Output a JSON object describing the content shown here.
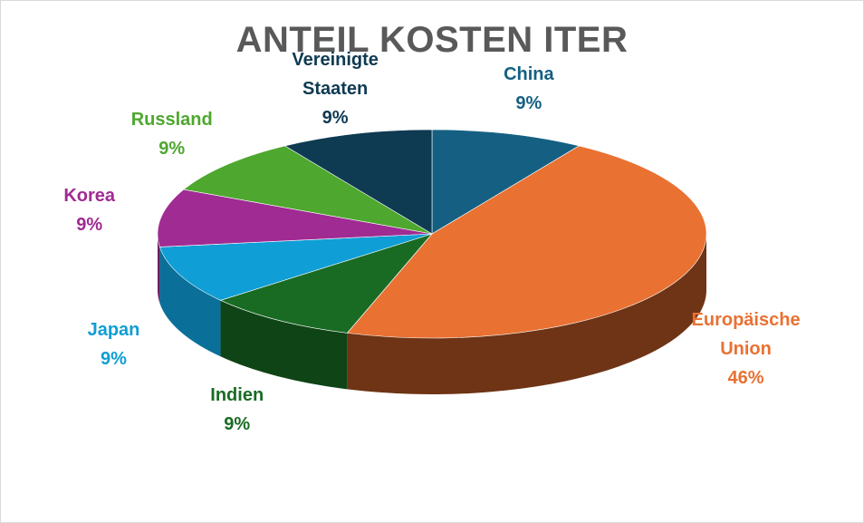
{
  "chart_data": {
    "type": "pie",
    "title": "ANTEIL KOSTEN ITER",
    "slices": [
      {
        "name": "China",
        "label_lines": [
          "China"
        ],
        "value": 9,
        "label": "9%",
        "color": "#156082",
        "side": "#0e4059"
      },
      {
        "name": "Europäische Union",
        "label_lines": [
          "Europäische",
          "Union"
        ],
        "value": 46,
        "label": "46%",
        "color": "#e97132",
        "side": "#6e3415"
      },
      {
        "name": "Indien",
        "label_lines": [
          "Indien"
        ],
        "value": 9,
        "label": "9%",
        "color": "#196b24",
        "side": "#0f4516"
      },
      {
        "name": "Japan",
        "label_lines": [
          "Japan"
        ],
        "value": 9,
        "label": "9%",
        "color": "#0f9ed5",
        "side": "#0a7099"
      },
      {
        "name": "Korea",
        "label_lines": [
          "Korea"
        ],
        "value": 9,
        "label": "9%",
        "color": "#a02b93",
        "side": "#6b1d62"
      },
      {
        "name": "Russland",
        "label_lines": [
          "Russland"
        ],
        "value": 9,
        "label": "9%",
        "color": "#4ea72e",
        "side": "#347020"
      },
      {
        "name": "Vereinigte Staaten",
        "label_lines": [
          "Vereinigte",
          "Staaten"
        ],
        "value": 9,
        "label": "9%",
        "color": "#0e3a52",
        "side": "#082333"
      }
    ],
    "legend": "none",
    "style": "3d-pie"
  }
}
